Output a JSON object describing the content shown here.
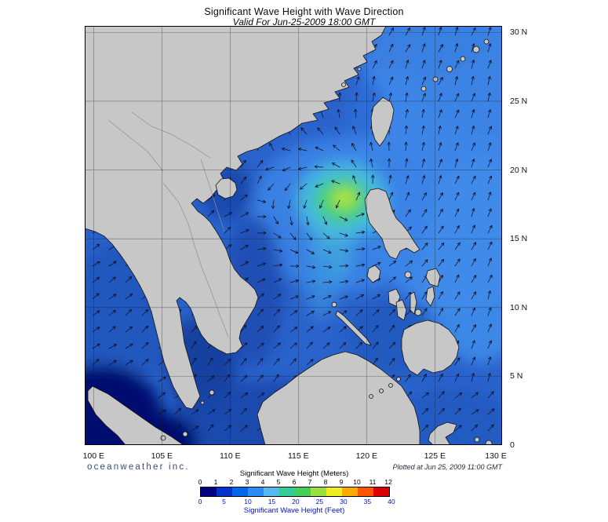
{
  "header": {
    "title": "Significant Wave Height with Wave Direction",
    "subtitle": "Valid For Jun-25-2009 18:00 GMT"
  },
  "footer": {
    "branding": "oceanweather inc.",
    "plotted": "Plotted at Jun 25, 2009 11:00 GMT"
  },
  "axes": {
    "lon_ticks": [
      {
        "label": "100 E",
        "value": 100
      },
      {
        "label": "105 E",
        "value": 105
      },
      {
        "label": "110 E",
        "value": 110
      },
      {
        "label": "115 E",
        "value": 115
      },
      {
        "label": "120 E",
        "value": 120
      },
      {
        "label": "125 E",
        "value": 125
      },
      {
        "label": "130 E",
        "value": 130
      }
    ],
    "lat_ticks": [
      {
        "label": "30 N",
        "value": 30
      },
      {
        "label": "25 N",
        "value": 25
      },
      {
        "label": "20 N",
        "value": 20
      },
      {
        "label": "15 N",
        "value": 15
      },
      {
        "label": "10 N",
        "value": 10
      },
      {
        "label": "5 N",
        "value": 5
      },
      {
        "label": "0",
        "value": 0
      }
    ]
  },
  "colorbar": {
    "meters_label": "Significant Wave Height (Meters)",
    "feet_label": "Significant Wave Height (Feet)",
    "meters_ticks": [
      "0",
      "1",
      "2",
      "3",
      "4",
      "5",
      "6",
      "7",
      "8",
      "9",
      "10",
      "11",
      "12"
    ],
    "feet_ticks": [
      "0",
      "5",
      "10",
      "15",
      "20",
      "25",
      "30",
      "35",
      "40"
    ],
    "segment_colors": [
      "#000080",
      "#0033cc",
      "#0066ee",
      "#2a8cf5",
      "#55b8f0",
      "#33cc99",
      "#44d055",
      "#99e040",
      "#eeee22",
      "#ffaa00",
      "#ff5500",
      "#dd0000"
    ]
  },
  "map": {
    "land_color": "#c7c7c7",
    "coast_color": "#141414",
    "ocean_base_color": "#2a63cc",
    "arrow_color": "#101028",
    "grid_color": "#1a1a1a",
    "storm_center": {
      "lon": 118.2,
      "lat": 17.8
    }
  }
}
